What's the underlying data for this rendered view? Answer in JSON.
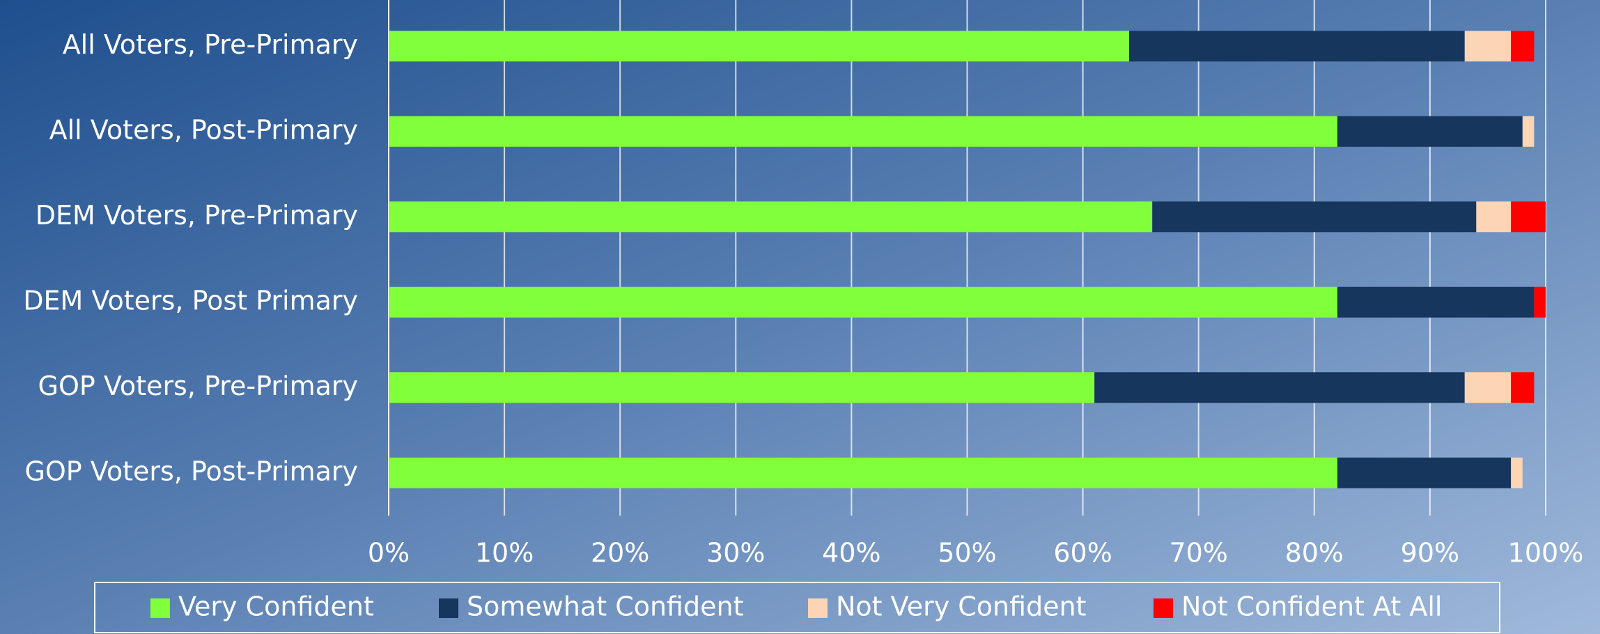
{
  "chart_data": {
    "type": "stacked_barh",
    "categories": [
      "All Voters, Pre-Primary",
      "All Voters, Post-Primary",
      "DEM Voters, Pre-Primary",
      "DEM Voters, Post Primary",
      "GOP Voters, Pre-Primary",
      "GOP Voters, Post-Primary"
    ],
    "series": [
      {
        "name": "Very Confident",
        "color": "#80ff3a",
        "values": [
          64,
          82,
          66,
          82,
          61,
          82
        ]
      },
      {
        "name": "Somewhat Confident",
        "color": "#17365d",
        "values": [
          29,
          16,
          28,
          17,
          32,
          15
        ]
      },
      {
        "name": "Not Very Confident",
        "color": "#fcd5b4",
        "values": [
          4,
          1,
          3,
          0,
          4,
          1
        ]
      },
      {
        "name": "Not Confident At All",
        "color": "#ff0000",
        "values": [
          2,
          0,
          3,
          1,
          2,
          0
        ]
      }
    ],
    "xlim": [
      0,
      100
    ],
    "xticks": [
      {
        "value": 0,
        "label": "0%"
      },
      {
        "value": 10,
        "label": "10%"
      },
      {
        "value": 20,
        "label": "20%"
      },
      {
        "value": 30,
        "label": "30%"
      },
      {
        "value": 40,
        "label": "40%"
      },
      {
        "value": 50,
        "label": "50%"
      },
      {
        "value": 60,
        "label": "60%"
      },
      {
        "value": 70,
        "label": "70%"
      },
      {
        "value": 80,
        "label": "80%"
      },
      {
        "value": 90,
        "label": "90%"
      },
      {
        "value": 100,
        "label": "100%"
      }
    ],
    "grid": true,
    "legend": "bottom"
  }
}
